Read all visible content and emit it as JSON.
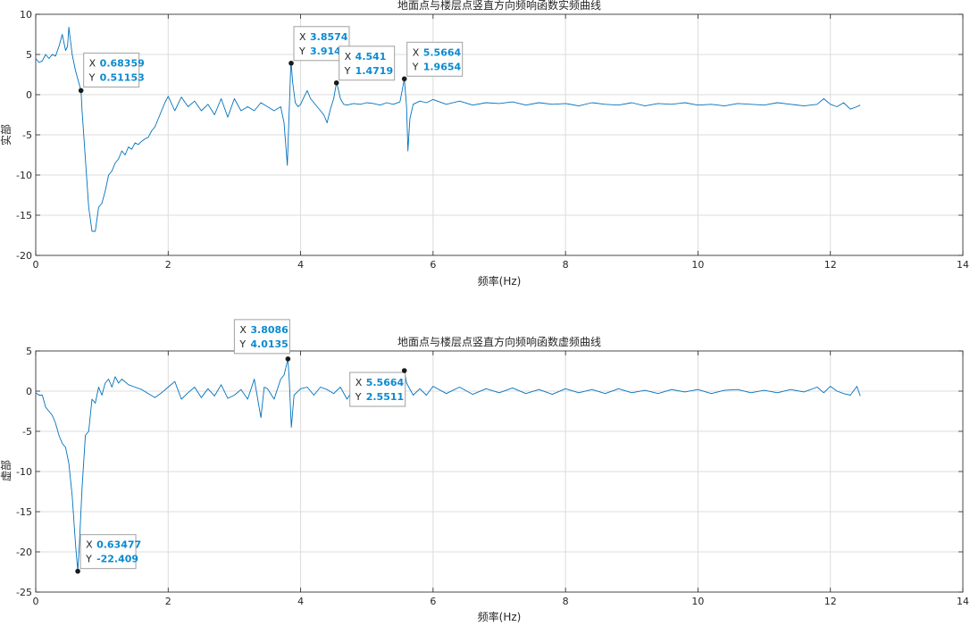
{
  "colors": {
    "line": "#0072BD",
    "axis": "#262626",
    "grid": "#dcdcdc",
    "datatip_value": "#0b8ad0",
    "datatip_border": "#a0a0a0",
    "marker": "#1a1a1a"
  },
  "chart_data": [
    {
      "type": "line",
      "title": "地面点与楼层点竖直方向频响函数实频曲线",
      "xlabel": "频率(Hz)",
      "ylabel": "实部",
      "xlim": [
        0,
        14
      ],
      "ylim": [
        -20,
        10
      ],
      "xticks": [
        0,
        2,
        4,
        6,
        8,
        10,
        12,
        14
      ],
      "yticks": [
        -20,
        -15,
        -10,
        -5,
        0,
        5,
        10
      ],
      "grid": true,
      "series": [
        {
          "x": [
            0,
            0.05,
            0.1,
            0.15,
            0.2,
            0.25,
            0.3,
            0.35,
            0.4,
            0.45,
            0.48,
            0.5,
            0.52,
            0.55,
            0.6,
            0.65,
            0.68359,
            0.7,
            0.75,
            0.8,
            0.85,
            0.9,
            0.95,
            1.0,
            1.05,
            1.1,
            1.15,
            1.2,
            1.25,
            1.3,
            1.35,
            1.4,
            1.45,
            1.5,
            1.55,
            1.6,
            1.65,
            1.7,
            1.75,
            1.8,
            1.85,
            1.9,
            1.95,
            2.0,
            2.1,
            2.2,
            2.3,
            2.4,
            2.5,
            2.6,
            2.7,
            2.8,
            2.9,
            3.0,
            3.1,
            3.2,
            3.3,
            3.4,
            3.5,
            3.6,
            3.7,
            3.75,
            3.8,
            3.85,
            3.8574,
            3.88,
            3.92,
            3.96,
            4.0,
            4.05,
            4.1,
            4.15,
            4.2,
            4.25,
            4.3,
            4.35,
            4.4,
            4.45,
            4.5,
            4.541,
            4.56,
            4.6,
            4.65,
            4.7,
            4.8,
            4.9,
            5.0,
            5.1,
            5.2,
            5.3,
            5.4,
            5.5,
            5.5664,
            5.6,
            5.62,
            5.65,
            5.7,
            5.8,
            5.9,
            6.0,
            6.2,
            6.4,
            6.6,
            6.8,
            7.0,
            7.2,
            7.4,
            7.6,
            7.8,
            8.0,
            8.2,
            8.4,
            8.6,
            8.8,
            9.0,
            9.2,
            9.4,
            9.6,
            9.8,
            10.0,
            10.2,
            10.4,
            10.6,
            10.8,
            11.0,
            11.2,
            11.4,
            11.6,
            11.8,
            11.9,
            12.0,
            12.1,
            12.2,
            12.3,
            12.4,
            12.45
          ],
          "y": [
            4.5,
            4.0,
            4.2,
            5.0,
            4.5,
            5.0,
            4.8,
            6.0,
            7.5,
            5.5,
            6.0,
            8.4,
            7.0,
            5.0,
            3.0,
            1.5,
            0.51153,
            -2.0,
            -8.0,
            -14.0,
            -17.0,
            -17.0,
            -14.0,
            -13.5,
            -12.0,
            -10.0,
            -9.5,
            -8.5,
            -8.0,
            -7.0,
            -7.5,
            -6.5,
            -6.8,
            -6.0,
            -6.2,
            -5.8,
            -5.5,
            -5.3,
            -4.5,
            -4.0,
            -3.0,
            -2.0,
            -1.0,
            -0.2,
            -2.0,
            -0.3,
            -1.5,
            -0.8,
            -2.0,
            -1.2,
            -2.5,
            -0.5,
            -2.8,
            -0.5,
            -2.0,
            -1.5,
            -2.0,
            -1.0,
            -1.5,
            -2.0,
            -1.5,
            -3.5,
            -8.8,
            3.5,
            3.9149,
            1.5,
            -1.0,
            -1.5,
            -1.2,
            -0.3,
            0.5,
            -0.5,
            -1.0,
            -1.5,
            -2.0,
            -2.5,
            -3.5,
            -1.8,
            -0.5,
            1.4719,
            1.0,
            -0.5,
            -1.2,
            -1.3,
            -1.1,
            -1.2,
            -1.0,
            -1.1,
            -1.3,
            -1.0,
            -1.2,
            -0.9,
            1.9654,
            -1.5,
            -7.0,
            -3.0,
            -1.2,
            -0.8,
            -1.0,
            -0.6,
            -1.2,
            -0.8,
            -1.3,
            -1.0,
            -1.1,
            -0.9,
            -1.3,
            -1.0,
            -1.2,
            -1.1,
            -1.4,
            -1.0,
            -1.2,
            -1.3,
            -1.0,
            -1.4,
            -1.1,
            -1.2,
            -1.0,
            -1.3,
            -1.2,
            -1.4,
            -1.1,
            -1.2,
            -1.3,
            -1.0,
            -1.2,
            -1.4,
            -1.2,
            -0.5,
            -1.2,
            -1.5,
            -1.0,
            -1.8,
            -1.5,
            -1.3
          ]
        }
      ],
      "datatips": [
        {
          "x_label": "X",
          "x": "0.68359",
          "y_label": "Y",
          "y": "0.51153",
          "px": 0.68359,
          "py": 0.51153,
          "side": "right"
        },
        {
          "x_label": "X",
          "x": "3.8574",
          "y_label": "Y",
          "y": "3.9149",
          "px": 3.8574,
          "py": 3.9149,
          "side": "above-right"
        },
        {
          "x_label": "X",
          "x": "4.541",
          "y_label": "Y",
          "y": "1.4719",
          "px": 4.541,
          "py": 1.4719,
          "side": "above-right"
        },
        {
          "x_label": "X",
          "x": "5.5664",
          "y_label": "Y",
          "y": "1.9654",
          "px": 5.5664,
          "py": 1.9654,
          "side": "above-right"
        }
      ]
    },
    {
      "type": "line",
      "title": "地面点与楼层点竖直方向频响函数虚频曲线",
      "xlabel": "频率(Hz)",
      "ylabel": "虚部",
      "xlim": [
        0,
        14
      ],
      "ylim": [
        -25,
        5
      ],
      "xticks": [
        0,
        2,
        4,
        6,
        8,
        10,
        12,
        14
      ],
      "yticks": [
        -25,
        -20,
        -15,
        -10,
        -5,
        0,
        5
      ],
      "grid": true,
      "series": [
        {
          "x": [
            0,
            0.05,
            0.1,
            0.15,
            0.2,
            0.25,
            0.3,
            0.35,
            0.4,
            0.45,
            0.5,
            0.55,
            0.6,
            0.63477,
            0.66,
            0.7,
            0.75,
            0.8,
            0.85,
            0.9,
            0.95,
            1.0,
            1.05,
            1.1,
            1.15,
            1.2,
            1.25,
            1.3,
            1.4,
            1.5,
            1.6,
            1.7,
            1.8,
            1.9,
            2.0,
            2.1,
            2.2,
            2.3,
            2.4,
            2.5,
            2.6,
            2.7,
            2.8,
            2.9,
            3.0,
            3.1,
            3.2,
            3.3,
            3.4,
            3.45,
            3.5,
            3.6,
            3.7,
            3.75,
            3.8086,
            3.83,
            3.86,
            3.9,
            4.0,
            4.1,
            4.2,
            4.3,
            4.4,
            4.5,
            4.6,
            4.7,
            4.8,
            4.9,
            5.0,
            5.1,
            5.2,
            5.3,
            5.4,
            5.5,
            5.5664,
            5.6,
            5.7,
            5.8,
            5.9,
            6.0,
            6.2,
            6.4,
            6.6,
            6.8,
            7.0,
            7.2,
            7.4,
            7.6,
            7.8,
            8.0,
            8.2,
            8.4,
            8.6,
            8.8,
            9.0,
            9.2,
            9.4,
            9.6,
            9.8,
            10.0,
            10.2,
            10.4,
            10.6,
            10.8,
            11.0,
            11.2,
            11.4,
            11.6,
            11.8,
            11.9,
            12.0,
            12.1,
            12.2,
            12.3,
            12.4,
            12.45
          ],
          "y": [
            -0.2,
            -0.5,
            -0.5,
            -2.0,
            -2.5,
            -3.0,
            -4.0,
            -5.5,
            -6.5,
            -7.0,
            -9.0,
            -13.0,
            -19.0,
            -22.409,
            -19.0,
            -12.0,
            -5.5,
            -5.0,
            -1.0,
            -1.5,
            0.5,
            -0.5,
            1.0,
            1.5,
            0.5,
            1.8,
            1.0,
            1.5,
            0.8,
            0.5,
            0.2,
            -0.3,
            -0.8,
            -0.2,
            0.5,
            1.2,
            -1.0,
            -0.2,
            0.5,
            -0.8,
            0.3,
            -0.6,
            0.8,
            -0.9,
            -0.5,
            0.2,
            -1.0,
            1.5,
            -3.3,
            0.5,
            0.3,
            -1.0,
            1.5,
            2.0,
            4.0135,
            1.0,
            -4.5,
            -0.5,
            0.3,
            0.5,
            -0.5,
            0.5,
            0.2,
            -0.3,
            0.5,
            -1.0,
            0.3,
            -0.5,
            0.5,
            -0.3,
            0.2,
            -0.5,
            0.5,
            0.4,
            2.5511,
            1.0,
            -0.5,
            0.3,
            -0.5,
            0.6,
            -0.3,
            0.5,
            -0.4,
            0.3,
            -0.2,
            0.4,
            -0.3,
            0.2,
            -0.4,
            0.3,
            -0.2,
            0.2,
            -0.3,
            0.3,
            -0.2,
            0.1,
            -0.3,
            0.2,
            -0.1,
            0.2,
            -0.3,
            0.1,
            0.2,
            -0.2,
            0.1,
            -0.2,
            0.2,
            -0.1,
            0.5,
            -0.2,
            0.6,
            0.0,
            -0.3,
            -0.5,
            0.6,
            -0.6
          ]
        }
      ],
      "datatips": [
        {
          "x_label": "X",
          "x": "3.8086",
          "y_label": "Y",
          "y": "4.0135",
          "px": 3.8086,
          "py": 4.0135,
          "side": "above-left"
        },
        {
          "x_label": "X",
          "x": "5.5664",
          "y_label": "Y",
          "y": "2.5511",
          "px": 5.5664,
          "py": 2.5511,
          "side": "below-left"
        },
        {
          "x_label": "X",
          "x": "0.63477",
          "y_label": "Y",
          "y": "-22.409",
          "px": 0.63477,
          "py": -22.409,
          "side": "above-right"
        }
      ]
    }
  ]
}
